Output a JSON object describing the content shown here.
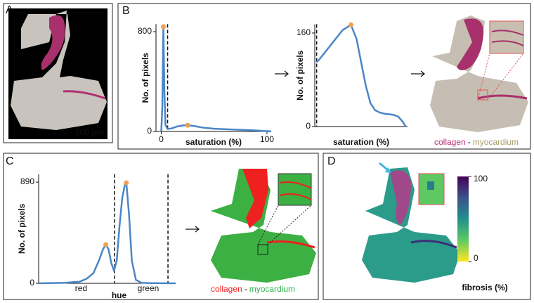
{
  "panels": {
    "a": "A",
    "b": "B",
    "c": "C",
    "d": "D"
  },
  "scale_bar": "500 µm",
  "chart_data": [
    {
      "type": "line",
      "ylabel": "No. of pixels",
      "xlabel": "saturation (%)",
      "x": [
        0,
        1,
        2,
        3,
        4,
        6,
        10,
        15,
        20,
        25,
        30,
        40,
        50,
        60,
        70,
        80,
        90,
        100,
        104
      ],
      "series": [
        {
          "color": "#4a86c5",
          "values": [
            0,
            200,
            840,
            300,
            50,
            20,
            25,
            40,
            48,
            50,
            45,
            30,
            22,
            18,
            15,
            12,
            8,
            3,
            0
          ]
        }
      ],
      "markers": {
        "x": [
          2,
          25
        ],
        "values": [
          840,
          50
        ],
        "color": "#f0a050"
      },
      "vlines": [
        6
      ],
      "xlim": [
        -5,
        104
      ],
      "ylim": [
        0,
        860
      ],
      "xticks": [
        0,
        100
      ],
      "yticks": [
        0,
        800
      ]
    },
    {
      "type": "line",
      "ylabel": "No. of pixels",
      "xlabel": "saturation (%)",
      "x": [
        2,
        5,
        10,
        15,
        20,
        25,
        30,
        35,
        39,
        45,
        50,
        55,
        60,
        65,
        70,
        75,
        80,
        85,
        90,
        95,
        98
      ],
      "series": [
        {
          "color": "#4a86c5",
          "values": [
            110,
            115,
            125,
            135,
            145,
            155,
            165,
            170,
            174,
            150,
            110,
            70,
            40,
            28,
            24,
            22,
            21,
            20,
            17,
            8,
            0
          ]
        }
      ],
      "markers": {
        "x": [
          39
        ],
        "values": [
          174
        ],
        "color": "#f0a050"
      },
      "vlines": [
        2
      ],
      "xlim": [
        0,
        100
      ],
      "ylim": [
        0,
        175
      ],
      "yticks": [
        0,
        160
      ]
    },
    {
      "type": "line",
      "ylabel": "No. of pixels",
      "xlabel": "hue",
      "x": [
        0,
        10,
        20,
        30,
        35,
        40,
        44,
        47,
        49,
        51,
        53,
        55,
        57,
        59,
        61,
        63,
        64,
        66,
        68,
        71,
        75,
        80,
        90,
        100
      ],
      "series": [
        {
          "color": "#4a86c5",
          "values": [
            0,
            2,
            5,
            15,
            40,
            90,
            200,
            300,
            340,
            300,
            180,
            110,
            200,
            500,
            750,
            870,
            884,
            600,
            200,
            30,
            5,
            2,
            1,
            0
          ]
        }
      ],
      "markers": {
        "x": [
          49,
          64
        ],
        "values": [
          340,
          884
        ],
        "color": "#f0a050"
      },
      "vlines": [
        55.4,
        94.4
      ],
      "xlim": [
        0,
        100
      ],
      "ylim": [
        0,
        960
      ],
      "yticks": [
        0,
        890
      ],
      "xticks": [
        {
          "value": 31,
          "label": "red"
        },
        {
          "value": 80,
          "label": "green"
        }
      ]
    }
  ],
  "legend_b": {
    "collagen": "collagen",
    "separator": "-",
    "myocardium": "myocardium",
    "collagen_color": "#c0307a",
    "myocardium_color": "#a89e6a"
  },
  "legend_c": {
    "collagen": "collagen",
    "separator": "-",
    "myocardium": "myocardium",
    "collagen_color": "#ee2020",
    "myocardium_color": "#2fb34a"
  },
  "colorbar": {
    "label": "fibrosis (%)",
    "lim": [
      0,
      100
    ],
    "ticks": [
      0,
      100
    ]
  }
}
